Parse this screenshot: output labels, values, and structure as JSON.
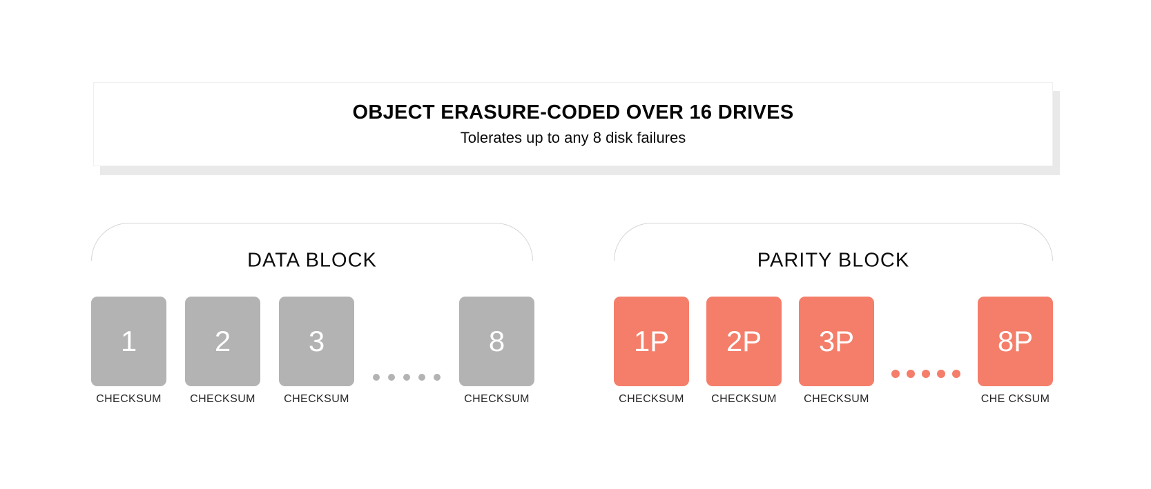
{
  "header": {
    "title": "OBJECT ERASURE-CODED OVER 16 DRIVES",
    "subtitle": "Tolerates up to any 8 disk failures"
  },
  "data_block": {
    "title": "DATA BLOCK",
    "drive_color": "#b3b3b3",
    "ellipsis_dots": 5,
    "drives": [
      {
        "label": "1",
        "checksum": "CHECKSUM"
      },
      {
        "label": "2",
        "checksum": "CHECKSUM"
      },
      {
        "label": "3",
        "checksum": "CHECKSUM"
      },
      {
        "label": "8",
        "checksum": "CHECKSUM"
      }
    ]
  },
  "parity_block": {
    "title": "PARITY BLOCK",
    "drive_color": "#f47e6a",
    "ellipsis_dots": 5,
    "drives": [
      {
        "label": "1P",
        "checksum": "CHECKSUM"
      },
      {
        "label": "2P",
        "checksum": "CHECKSUM"
      },
      {
        "label": "3P",
        "checksum": "CHECKSUM"
      },
      {
        "label": "8P",
        "checksum": "CHE CKSUM"
      }
    ]
  }
}
